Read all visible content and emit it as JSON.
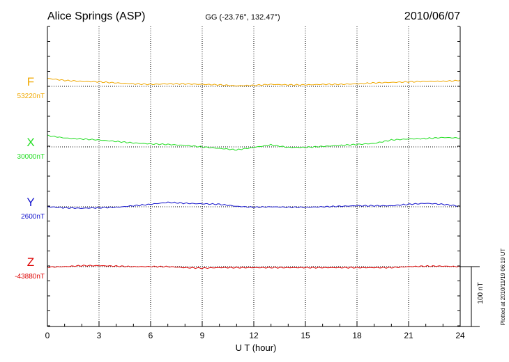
{
  "chart_data": {
    "type": "line",
    "title": "Alice Springs (ASP)",
    "subtitle": "GG (-23.76°, 132.47°)",
    "date": "2010/06/07",
    "xlabel": "U T (hour)",
    "xlim": [
      0,
      24
    ],
    "x_ticks": [
      "0",
      "3",
      "6",
      "9",
      "12",
      "15",
      "18",
      "21",
      "24"
    ],
    "grid": true,
    "scale_bar_label": "100 nT",
    "footer": "Plotted at 2010/11/19 06:19 UT",
    "series": [
      {
        "name": "F",
        "baseline_label": "53220nT",
        "color": "#f0a800",
        "x": [
          0,
          1,
          2,
          3,
          4,
          5,
          6,
          7,
          8,
          9,
          10,
          11,
          12,
          13,
          14,
          15,
          16,
          17,
          18,
          19,
          20,
          21,
          22,
          23,
          24
        ],
        "y": [
          16,
          12,
          10,
          9,
          7,
          5,
          4,
          5,
          5,
          4,
          3,
          1,
          2,
          4,
          3,
          3,
          4,
          4,
          5,
          7,
          8,
          9,
          10,
          10,
          12
        ]
      },
      {
        "name": "X",
        "baseline_label": "30000nT",
        "color": "#22dd22",
        "x": [
          0,
          1,
          2,
          3,
          4,
          5,
          6,
          7,
          8,
          9,
          10,
          11,
          12,
          13,
          14,
          15,
          16,
          17,
          18,
          19,
          20,
          21,
          22,
          23,
          24
        ],
        "y": [
          23,
          18,
          16,
          14,
          11,
          8,
          6,
          5,
          3,
          0,
          -3,
          -6,
          -1,
          4,
          -1,
          -1,
          1,
          3,
          5,
          7,
          14,
          16,
          17,
          19,
          18
        ]
      },
      {
        "name": "Y",
        "baseline_label": "2600nT",
        "color": "#1111cc",
        "x": [
          0,
          1,
          2,
          3,
          4,
          5,
          6,
          7,
          8,
          9,
          10,
          11,
          12,
          13,
          14,
          15,
          16,
          17,
          18,
          19,
          20,
          21,
          22,
          23,
          24
        ],
        "y": [
          0,
          -2,
          -3,
          -2,
          -1,
          2,
          5,
          9,
          7,
          6,
          5,
          1,
          -1,
          0,
          -1,
          -1,
          0,
          1,
          2,
          2,
          2,
          5,
          7,
          5,
          1
        ]
      },
      {
        "name": "Z",
        "baseline_label": "-43880nT",
        "color": "#dd0000",
        "x": [
          0,
          1,
          2,
          3,
          4,
          5,
          6,
          7,
          8,
          9,
          10,
          11,
          12,
          13,
          14,
          15,
          16,
          17,
          18,
          19,
          20,
          21,
          22,
          23,
          24
        ],
        "y": [
          -1,
          0,
          2,
          2,
          1,
          0,
          0,
          0,
          -2,
          -3,
          -2,
          -2,
          -2,
          -2,
          -2,
          -2,
          -2,
          -2,
          -2,
          -2,
          -2,
          0,
          1,
          1,
          0
        ]
      }
    ]
  }
}
